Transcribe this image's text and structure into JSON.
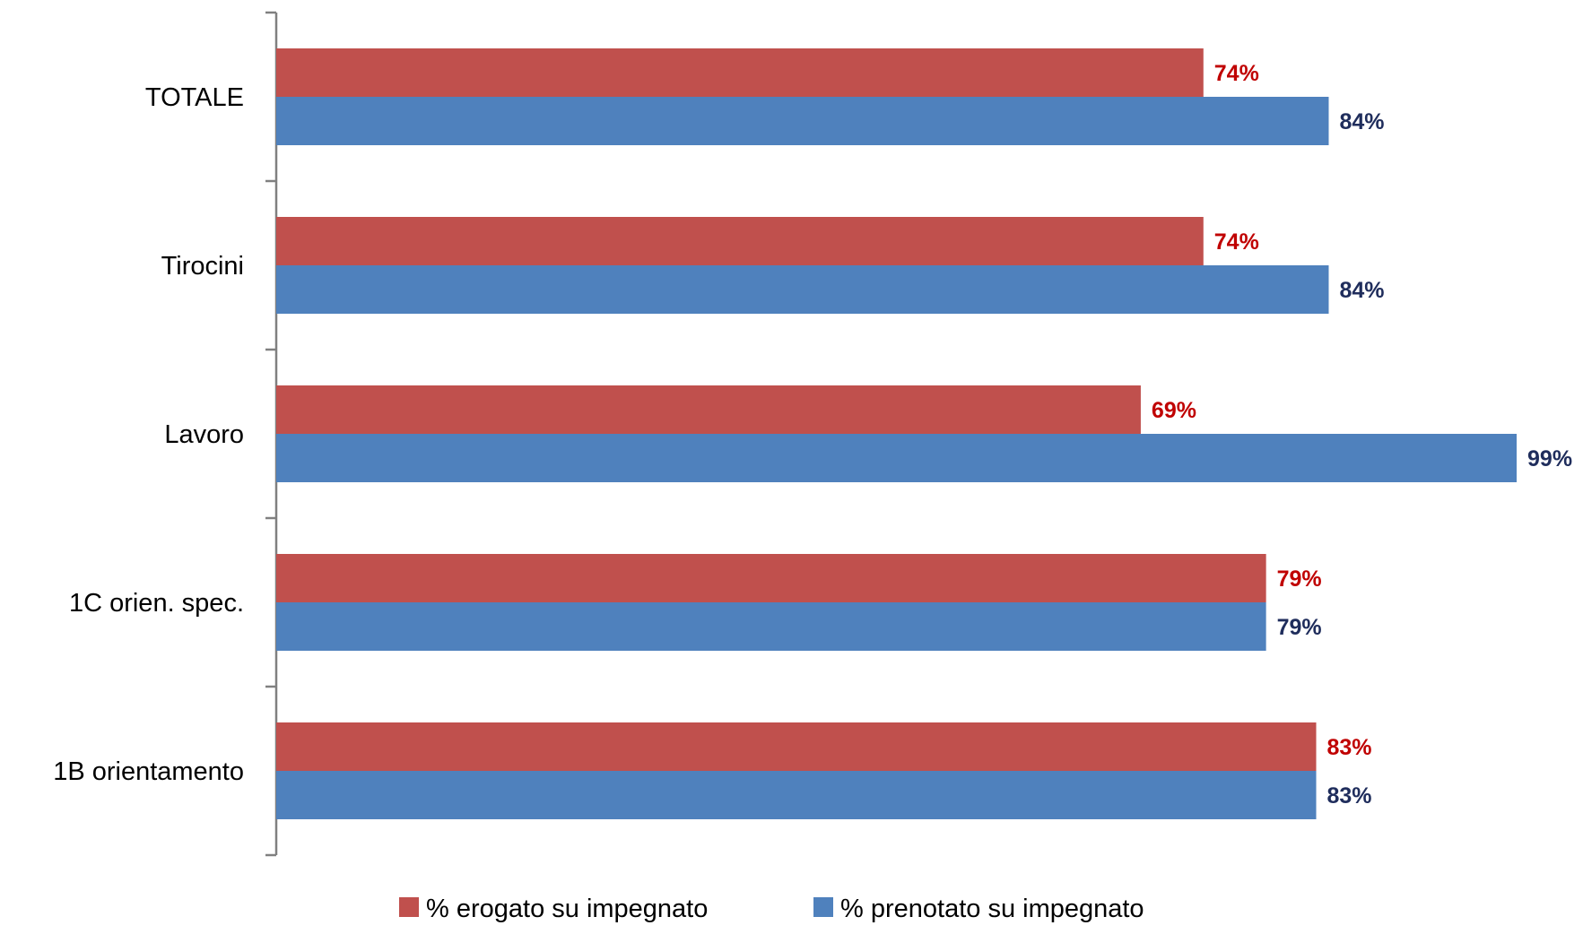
{
  "chart_data": {
    "type": "bar",
    "orientation": "horizontal",
    "categories": [
      "TOTALE",
      "Tirocini",
      "Lavoro",
      "1C orien. spec.",
      "1B orientamento"
    ],
    "series": [
      {
        "name": "% erogato su impegnato",
        "color": "#C0504D",
        "label_color": "#C00000",
        "values": [
          74,
          74,
          69,
          79,
          83
        ],
        "labels": [
          "74%",
          "74%",
          "69%",
          "79%",
          "83%"
        ]
      },
      {
        "name": "% prenotato su impegnato",
        "color": "#4F81BD",
        "label_color": "#1F2D5C",
        "values": [
          84,
          84,
          99,
          79,
          83
        ],
        "labels": [
          "84%",
          "84%",
          "99%",
          "79%",
          "83%"
        ]
      }
    ],
    "xlim": [
      0,
      100
    ],
    "grid": false,
    "x_axis_visible": false,
    "legend_position": "bottom"
  }
}
